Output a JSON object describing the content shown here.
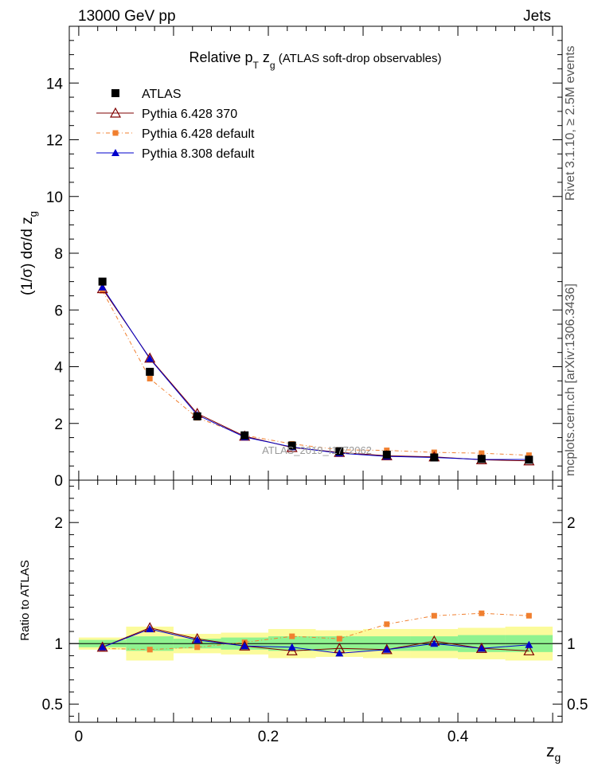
{
  "header": {
    "left": "13000 GeV pp",
    "right": "Jets"
  },
  "side_labels": {
    "rivet": "Rivet 3.1.10, ≥ 2.5M events",
    "mcplots": "mcplots.cern.ch [arXiv:1306.3436]"
  },
  "watermark": "ATLAS_2019_I1772062",
  "colors": {
    "atlas": "#000000",
    "py6_370": "#7f0000",
    "py6_default": "#f07f2f",
    "py8_default": "#0000cc",
    "band_inner": "#8ff28f",
    "band_outer": "#fbfb9b"
  },
  "chart_data": {
    "type": "line",
    "title": {
      "main": "Relative p",
      "sub1": "T",
      "mid": " z",
      "sub2": "g",
      "tail": " (ATLAS soft-drop observables)"
    },
    "ylabel": {
      "main": "(1/σ) dσ/d z",
      "sub": "g"
    },
    "ratio_ylabel": "Ratio to ATLAS",
    "xlabel": {
      "main": "z",
      "sub": "g"
    },
    "xlim": [
      -0.01,
      0.51
    ],
    "ylim": [
      0,
      16
    ],
    "ratio_ylim": [
      0.35,
      2.35
    ],
    "x_ticks": [
      0,
      0.2,
      0.4
    ],
    "x_tick_labels": [
      "0",
      "0.2",
      "0.4"
    ],
    "y_ticks": [
      0,
      2,
      4,
      6,
      8,
      10,
      12,
      14
    ],
    "y_tick_labels": [
      "0",
      "2",
      "4",
      "6",
      "8",
      "10",
      "12",
      "14"
    ],
    "ratio_ticks": [
      0.5,
      1,
      2
    ],
    "ratio_tick_labels": [
      "0.5",
      "1",
      "2"
    ],
    "bin_edges": [
      0.0,
      0.05,
      0.1,
      0.15,
      0.2,
      0.25,
      0.3,
      0.35,
      0.4,
      0.45,
      0.5
    ],
    "x": [
      0.025,
      0.075,
      0.125,
      0.175,
      0.225,
      0.275,
      0.325,
      0.375,
      0.425,
      0.475
    ],
    "legend": [
      "ATLAS",
      "Pythia 6.428 370",
      "Pythia 6.428 default",
      "Pythia 8.308 default"
    ],
    "series": [
      {
        "name": "ATLAS",
        "key": "atlas",
        "values": [
          7.0,
          3.82,
          2.25,
          1.58,
          1.22,
          1.02,
          0.9,
          0.8,
          0.75,
          0.72
        ]
      },
      {
        "name": "Pythia 6.428 370",
        "key": "py6_370",
        "values": [
          6.75,
          4.3,
          2.35,
          1.55,
          1.15,
          0.98,
          0.86,
          0.82,
          0.72,
          0.68
        ],
        "ratio": [
          0.97,
          1.13,
          1.04,
          0.98,
          0.94,
          0.96,
          0.95,
          1.02,
          0.96,
          0.94
        ]
      },
      {
        "name": "Pythia 6.428 default",
        "key": "py6_default",
        "values": [
          6.68,
          3.58,
          2.2,
          1.58,
          1.28,
          1.07,
          1.05,
          0.98,
          0.95,
          0.88
        ],
        "ratio": [
          0.96,
          0.95,
          0.97,
          1.01,
          1.06,
          1.04,
          1.16,
          1.23,
          1.25,
          1.23
        ]
      },
      {
        "name": "Pythia 8.308 default",
        "key": "py8_default",
        "values": [
          6.8,
          4.28,
          2.3,
          1.52,
          1.17,
          0.95,
          0.84,
          0.8,
          0.73,
          0.73
        ],
        "ratio": [
          0.97,
          1.12,
          1.03,
          0.98,
          0.97,
          0.92,
          0.95,
          1.0,
          0.96,
          0.99
        ]
      }
    ],
    "bands": {
      "inner_halfwidth": [
        0.03,
        0.06,
        0.04,
        0.05,
        0.06,
        0.06,
        0.06,
        0.06,
        0.07,
        0.07
      ],
      "outer_halfwidth": [
        0.05,
        0.14,
        0.08,
        0.09,
        0.12,
        0.11,
        0.12,
        0.12,
        0.13,
        0.14
      ]
    }
  }
}
